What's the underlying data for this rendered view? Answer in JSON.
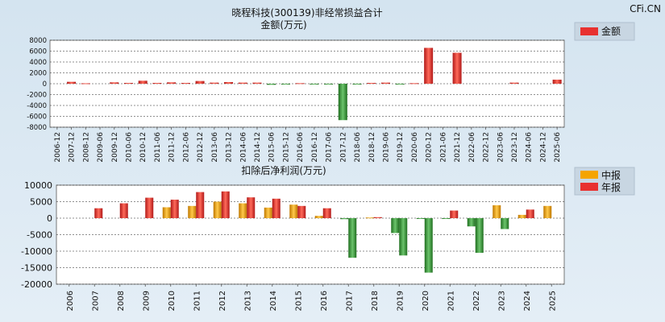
{
  "watermark": "CFi.CN",
  "chart_data": [
    {
      "type": "bar",
      "title": "晓程科技(300139)非经常损益合计",
      "subtitle": "金额(万元)",
      "categories": [
        "2006-12",
        "2007-12",
        "2008-12",
        "2009-06",
        "2009-12",
        "2010-06",
        "2010-12",
        "2011-06",
        "2011-12",
        "2012-06",
        "2012-12",
        "2013-06",
        "2013-12",
        "2014-06",
        "2014-12",
        "2015-06",
        "2015-12",
        "2016-06",
        "2016-12",
        "2017-06",
        "2017-12",
        "2018-06",
        "2018-12",
        "2019-06",
        "2019-12",
        "2020-06",
        "2020-12",
        "2021-06",
        "2021-12",
        "2022-06",
        "2022-12",
        "2023-06",
        "2023-12",
        "2024-06",
        "2024-12",
        "2025-06"
      ],
      "series": [
        {
          "name": "金额",
          "color": "#e8312f",
          "values": [
            0,
            350,
            80,
            0,
            250,
            150,
            550,
            150,
            250,
            150,
            500,
            200,
            300,
            200,
            200,
            -200,
            -150,
            100,
            -100,
            -150,
            -6700,
            -150,
            150,
            200,
            -100,
            100,
            6600,
            0,
            5700,
            0,
            0,
            0,
            200,
            0,
            0,
            750
          ]
        }
      ],
      "ylim": [
        -8000,
        8000
      ],
      "yticks": [
        8000,
        6000,
        4000,
        2000,
        0,
        -2000,
        -4000,
        -6000,
        -8000
      ],
      "legend": "top-right",
      "grid": true
    },
    {
      "type": "bar",
      "title": "扣除后净利润(万元)",
      "categories": [
        "2006",
        "2007",
        "2008",
        "2009",
        "2010",
        "2011",
        "2012",
        "2013",
        "2014",
        "2015",
        "2016",
        "2017",
        "2018",
        "2019",
        "2020",
        "2021",
        "2022",
        "2023",
        "2024",
        "2025"
      ],
      "series": [
        {
          "name": "中报",
          "color": "#f5a400",
          "values": [
            null,
            null,
            null,
            null,
            3300,
            3700,
            5000,
            4500,
            3200,
            4100,
            700,
            -300,
            200,
            -4500,
            -200,
            -200,
            -2500,
            3900,
            1000,
            3700
          ]
        },
        {
          "name": "年报",
          "color": "#e8312f",
          "values": [
            null,
            3000,
            4500,
            6200,
            5600,
            7900,
            8100,
            6300,
            5900,
            3700,
            3000,
            -12000,
            300,
            -11300,
            -16500,
            2300,
            -10500,
            -3300,
            2600,
            null
          ]
        }
      ],
      "ylim": [
        -20000,
        10000
      ],
      "yticks": [
        10000,
        5000,
        0,
        -5000,
        -10000,
        -15000,
        -20000
      ],
      "legend": "top-right",
      "grid": true
    }
  ]
}
